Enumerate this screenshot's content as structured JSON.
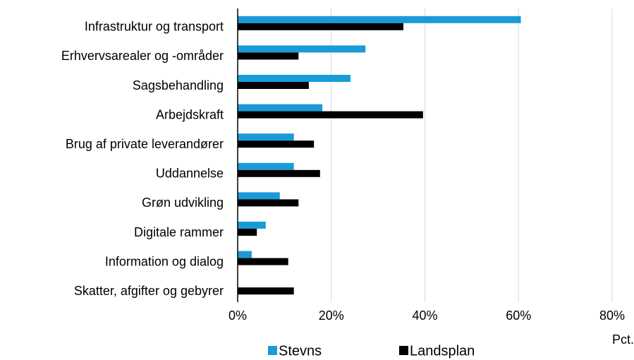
{
  "chart_data": {
    "type": "hbar",
    "categories": [
      "Infrastruktur og transport",
      "Erhvervsarealer og -områder",
      "Sagsbehandling",
      "Arbejdskraft",
      "Brug af private leverandører",
      "Uddannelse",
      "Grøn udvikling",
      "Digitale rammer",
      "Information og dialog",
      "Skatter, afgifter og gebyrer"
    ],
    "series": [
      {
        "name": "Stevns",
        "color": "#1a9bd7",
        "values": [
          60.5,
          27.3,
          24.1,
          18.1,
          12.0,
          12.0,
          9.0,
          6.0,
          3.0,
          0
        ]
      },
      {
        "name": "Landsplan",
        "color": "#000000",
        "values": [
          35.4,
          13.0,
          15.2,
          39.6,
          16.3,
          17.6,
          13.0,
          4.1,
          10.8,
          12.0
        ]
      }
    ],
    "xlim": [
      0,
      80
    ],
    "xticks": [
      {
        "value": 0,
        "label": "0%"
      },
      {
        "value": 20,
        "label": "20%"
      },
      {
        "value": 40,
        "label": "40%"
      },
      {
        "value": 60,
        "label": "60%"
      },
      {
        "value": 80,
        "label": "80%"
      }
    ],
    "xlabel": "Pct.",
    "grid": true,
    "legend": "bottom"
  }
}
